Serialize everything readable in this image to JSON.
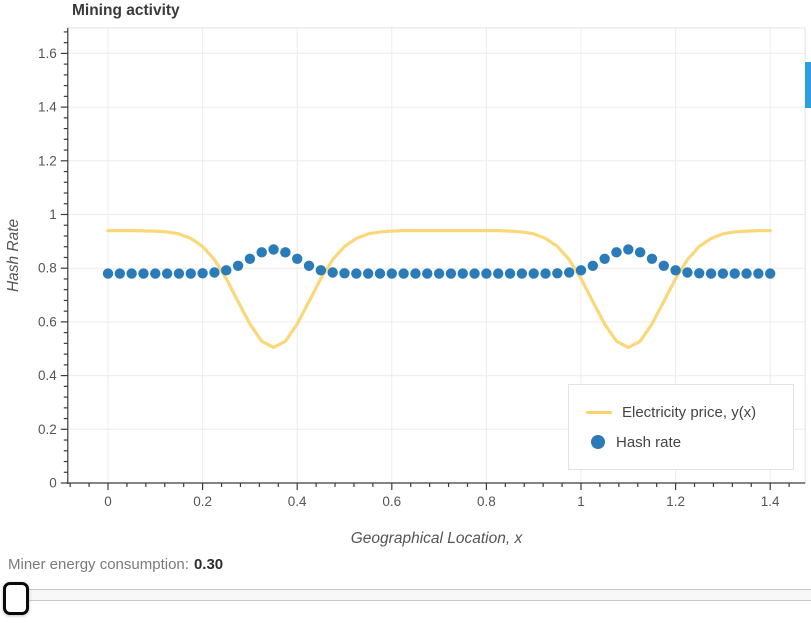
{
  "chart_data": {
    "type": "line+scatter",
    "title": "Mining activity",
    "xlabel": "Geographical Location, x",
    "ylabel": "Hash Rate",
    "xlim": [
      -0.085,
      1.474
    ],
    "ylim": [
      0,
      1.695
    ],
    "grid": true,
    "legend_position": "bottom-right",
    "x_ticks": [
      0,
      0.2,
      0.4,
      0.6,
      0.8,
      1,
      1.2,
      1.4
    ],
    "x_tick_labels": [
      "0",
      "0.2",
      "0.4",
      "0.6",
      "0.8",
      "1",
      "1.2",
      "1.4"
    ],
    "y_ticks": [
      0,
      0.2,
      0.4,
      0.6,
      0.8,
      1,
      1.2,
      1.4,
      1.6
    ],
    "y_tick_labels": [
      "0",
      "0.2",
      "0.4",
      "0.6",
      "0.8",
      "1",
      "1.2",
      "1.4",
      "1.6"
    ],
    "minor_tick_step": 0.04,
    "x": [
      0,
      0.025,
      0.05,
      0.075,
      0.1,
      0.125,
      0.15,
      0.175,
      0.2,
      0.225,
      0.25,
      0.275,
      0.3,
      0.325,
      0.35,
      0.375,
      0.4,
      0.425,
      0.45,
      0.475,
      0.5,
      0.525,
      0.55,
      0.575,
      0.6,
      0.625,
      0.65,
      0.675,
      0.7,
      0.725,
      0.75,
      0.775,
      0.8,
      0.825,
      0.85,
      0.875,
      0.9,
      0.925,
      0.95,
      0.975,
      1,
      1.025,
      1.05,
      1.075,
      1.1,
      1.125,
      1.15,
      1.175,
      1.2,
      1.225,
      1.25,
      1.275,
      1.3,
      1.325,
      1.35,
      1.375,
      1.4
    ],
    "series": [
      {
        "name": "Electricity price, y(x)",
        "type": "line",
        "color": "#f9d46a",
        "y": [
          0.94,
          0.94,
          0.94,
          0.939,
          0.938,
          0.935,
          0.928,
          0.911,
          0.881,
          0.832,
          0.761,
          0.676,
          0.592,
          0.528,
          0.505,
          0.528,
          0.592,
          0.676,
          0.761,
          0.832,
          0.881,
          0.911,
          0.928,
          0.935,
          0.938,
          0.94,
          0.94,
          0.94,
          0.94,
          0.94,
          0.94,
          0.94,
          0.94,
          0.94,
          0.938,
          0.935,
          0.928,
          0.911,
          0.881,
          0.832,
          0.761,
          0.676,
          0.592,
          0.528,
          0.505,
          0.528,
          0.592,
          0.676,
          0.761,
          0.832,
          0.881,
          0.911,
          0.928,
          0.935,
          0.938,
          0.94,
          0.94
        ]
      },
      {
        "name": "Hash rate",
        "type": "scatter",
        "color": "#2b7bb9",
        "y": [
          0.78,
          0.78,
          0.78,
          0.78,
          0.78,
          0.78,
          0.78,
          0.78,
          0.781,
          0.784,
          0.792,
          0.809,
          0.835,
          0.859,
          0.87,
          0.859,
          0.835,
          0.809,
          0.792,
          0.784,
          0.781,
          0.78,
          0.78,
          0.78,
          0.78,
          0.78,
          0.78,
          0.78,
          0.78,
          0.78,
          0.78,
          0.78,
          0.78,
          0.78,
          0.78,
          0.78,
          0.78,
          0.78,
          0.781,
          0.784,
          0.792,
          0.809,
          0.835,
          0.859,
          0.87,
          0.859,
          0.835,
          0.809,
          0.792,
          0.784,
          0.781,
          0.78,
          0.78,
          0.78,
          0.78,
          0.78,
          0.78
        ]
      }
    ],
    "colors": {
      "spine": "#3b3b3b",
      "grid": "#ececec",
      "outline": "#e8e8e8",
      "tick_label": "#555555",
      "axis_label": "#555555"
    }
  },
  "scrollbar_color": "#2e9fda",
  "footer": {
    "label": "Miner energy consumption:",
    "value": "0.30"
  }
}
